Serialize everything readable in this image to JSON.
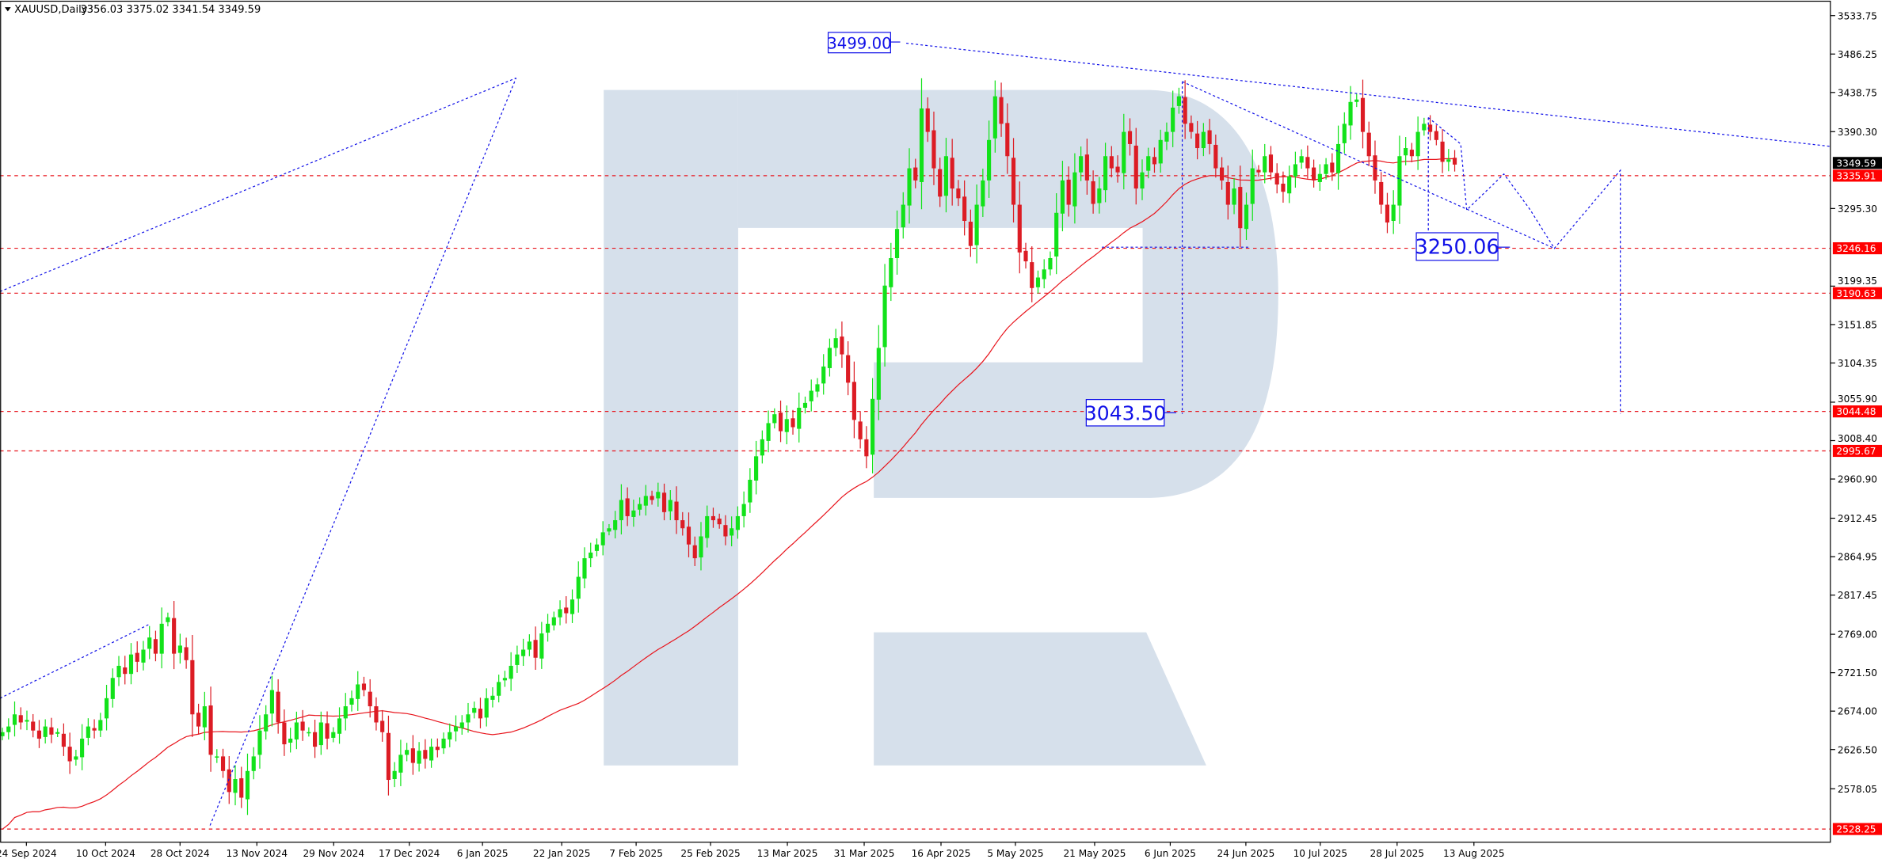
{
  "header": {
    "symbol": "XAUUSD,Daily",
    "ohlc": "3356.03 3375.02 3341.54 3349.59"
  },
  "chart_data": {
    "type": "candlestick",
    "title": "XAUUSD,Daily",
    "ylim": [
      2510,
      3550
    ],
    "colors": {
      "bull": "#12e21a",
      "bear": "#dc1c24",
      "ma": "#e8141c",
      "levels": "#e8141c",
      "drawings": "#1010e8",
      "watermark": "#d6e0eb"
    },
    "x_tick_labels": [
      "24 Sep 2024",
      "10 Oct 2024",
      "28 Oct 2024",
      "13 Nov 2024",
      "29 Nov 2024",
      "17 Dec 2024",
      "6 Jan 2025",
      "22 Jan 2025",
      "7 Feb 2025",
      "25 Feb 2025",
      "13 Mar 2025",
      "31 Mar 2025",
      "16 Apr 2025",
      "5 May 2025",
      "21 May 2025",
      "6 Jun 2025",
      "24 Jun 2025",
      "10 Jul 2025",
      "28 Jul 2025",
      "13 Aug 2025"
    ],
    "y_tick_labels": [
      "3533.75",
      "3486.25",
      "3438.75",
      "3390.30",
      "3295.30",
      "3199.35",
      "3151.85",
      "3104.35",
      "3055.90",
      "3008.40",
      "2960.90",
      "2912.45",
      "2864.95",
      "2817.45",
      "2769.00",
      "2721.50",
      "2674.00",
      "2626.50",
      "2578.05"
    ],
    "close": [
      2648,
      2655,
      2670,
      2660,
      2663,
      2650,
      2640,
      2655,
      2645,
      2648,
      2630,
      2612,
      2618,
      2640,
      2655,
      2650,
      2663,
      2690,
      2715,
      2730,
      2720,
      2744,
      2735,
      2750,
      2765,
      2745,
      2782,
      2790,
      2745,
      2755,
      2737,
      2670,
      2655,
      2680,
      2620,
      2618,
      2600,
      2574,
      2590,
      2567,
      2600,
      2618,
      2650,
      2670,
      2700,
      2660,
      2633,
      2640,
      2660,
      2650,
      2648,
      2630,
      2660,
      2640,
      2648,
      2665,
      2680,
      2690,
      2707,
      2700,
      2680,
      2660,
      2648,
      2589,
      2600,
      2620,
      2626,
      2610,
      2625,
      2615,
      2630,
      2626,
      2640,
      2648,
      2655,
      2660,
      2670,
      2678,
      2665,
      2690,
      2693,
      2710,
      2715,
      2730,
      2744,
      2750,
      2760,
      2740,
      2770,
      2782,
      2790,
      2800,
      2795,
      2812,
      2840,
      2863,
      2870,
      2880,
      2895,
      2900,
      2910,
      2935,
      2915,
      2922,
      2930,
      2940,
      2935,
      2945,
      2920,
      2935,
      2910,
      2900,
      2880,
      2863,
      2890,
      2915,
      2910,
      2905,
      2890,
      2900,
      2915,
      2930,
      2960,
      2989,
      3010,
      3030,
      3041,
      3020,
      3035,
      3025,
      3049,
      3055,
      3070,
      3078,
      3100,
      3123,
      3135,
      3115,
      3080,
      3034,
      3010,
      2989,
      3060,
      3123,
      3200,
      3234,
      3270,
      3300,
      3345,
      3330,
      3419,
      3390,
      3345,
      3310,
      3360,
      3320,
      3308,
      3280,
      3249,
      3300,
      3330,
      3380,
      3434,
      3400,
      3360,
      3300,
      3241,
      3230,
      3197,
      3210,
      3220,
      3234,
      3290,
      3330,
      3300,
      3340,
      3360,
      3330,
      3301,
      3320,
      3360,
      3345,
      3340,
      3390,
      3375,
      3320,
      3340,
      3360,
      3350,
      3380,
      3390,
      3420,
      3434,
      3400,
      3390,
      3370,
      3390,
      3375,
      3345,
      3330,
      3300,
      3320,
      3271,
      3300,
      3345,
      3340,
      3360,
      3340,
      3325,
      3316,
      3335,
      3350,
      3360,
      3345,
      3330,
      3338,
      3350,
      3340,
      3375,
      3400,
      3427,
      3430,
      3390,
      3360,
      3330,
      3300,
      3278,
      3300,
      3360,
      3370,
      3360,
      3390,
      3400,
      3390,
      3380,
      3353,
      3356.03,
      3349.59
    ],
    "last_price": "3349.59",
    "moving_average": {
      "period": 50
    },
    "levels": [
      "3335.91",
      "3246.16",
      "3190.63",
      "3044.48",
      "2995.67",
      "2528.25"
    ],
    "annotations": [
      "3499.00",
      "3043.50",
      "3250.06"
    ]
  }
}
